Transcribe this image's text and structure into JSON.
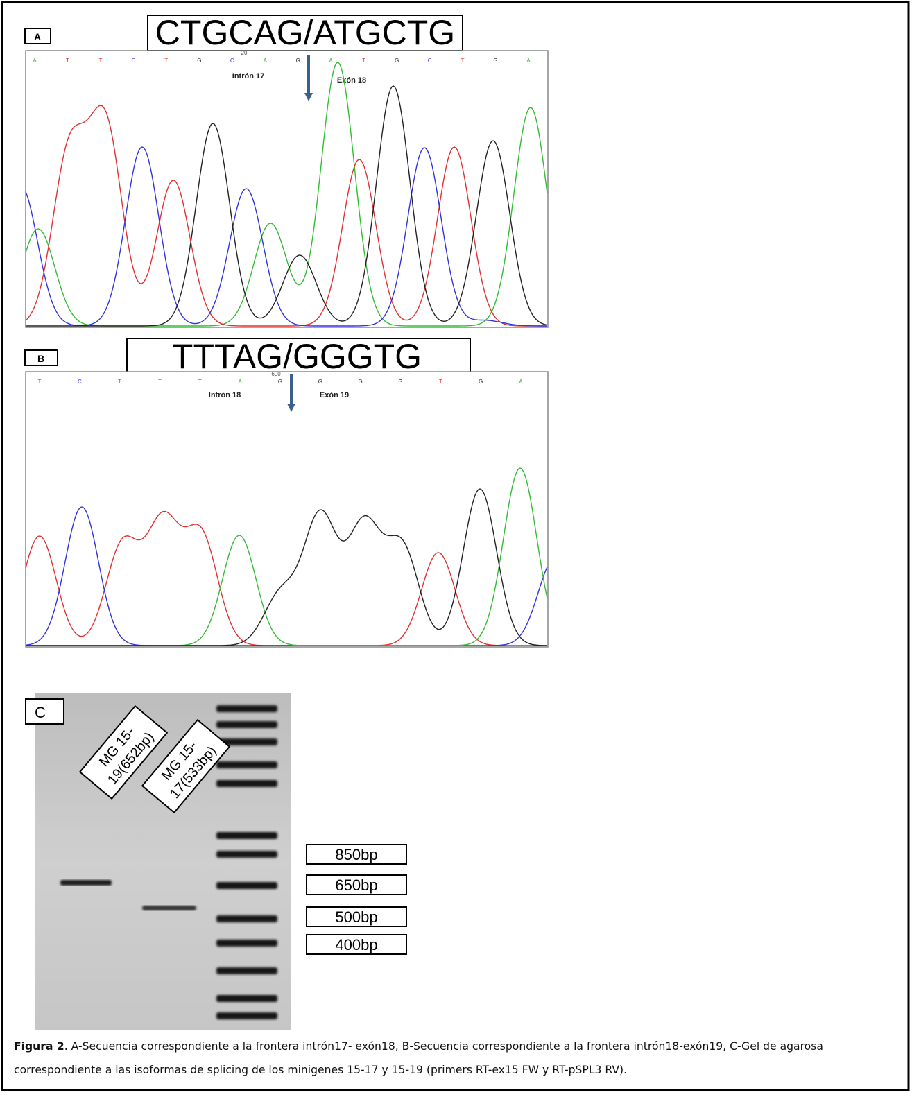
{
  "panels": [
    {
      "label": "A",
      "sequence": "CTGCAG/ATGCTG",
      "bases": [
        "A",
        "T",
        "T",
        "C",
        "T",
        "G",
        "C",
        "A",
        "G",
        "A",
        "T",
        "G",
        "C",
        "T",
        "G",
        "A"
      ],
      "position": "20",
      "intron": "Intrón 17",
      "exon": "Exón 18"
    },
    {
      "label": "B",
      "sequence": "TTTAG/GGGTG",
      "bases": [
        "T",
        "C",
        "T",
        "T",
        "T",
        "A",
        "G",
        "G",
        "G",
        "G",
        "T",
        "G",
        "A"
      ],
      "position": "600",
      "intron": "Intrón 18",
      "exon": "Exón 19"
    }
  ],
  "gel": {
    "label": "C",
    "lanes": [
      [
        "MG 15-",
        "19(652bp)"
      ],
      [
        "MG 15-",
        "17(533bp)"
      ]
    ],
    "markers": [
      "850bp",
      "650bp",
      "500bp",
      "400bp"
    ]
  },
  "caption": {
    "bold": "Figura 2",
    "text": ". A-Secuencia correspondiente a la frontera intrón17- exón18, B-Secuencia correspondiente a la frontera intrón18-exón19, C-Gel de agarosa correspondiente a las isoformas de splicing de los minigenes 15-17 y 15-19 (primers RT-ex15 FW y RT-pSPL3 RV)."
  }
}
